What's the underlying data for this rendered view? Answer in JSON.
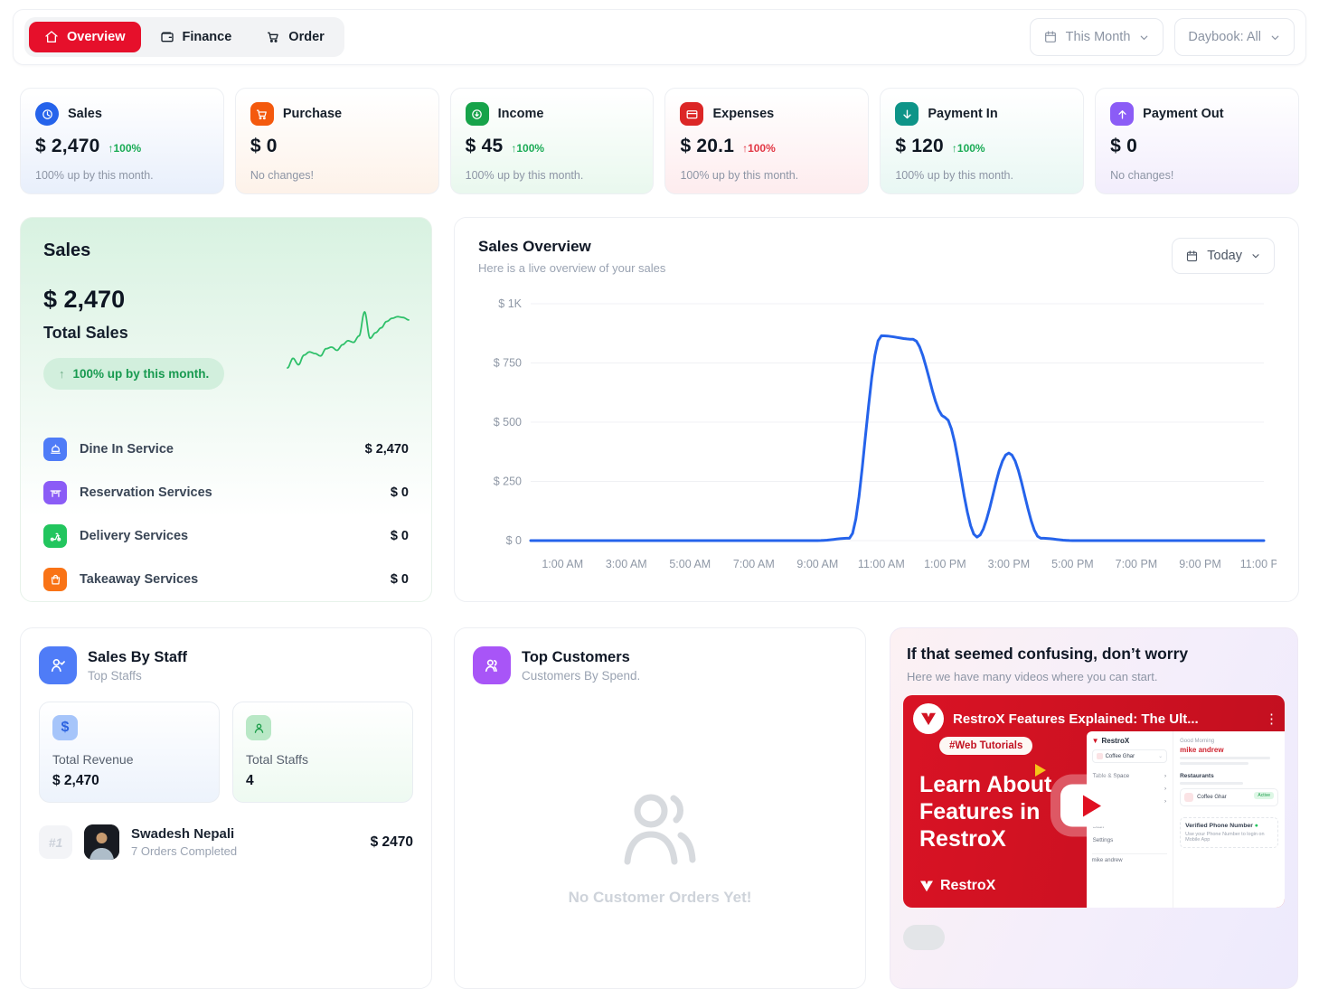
{
  "brand": {
    "accent_red": "#e6102b",
    "chart_blue": "#2563eb",
    "spark_green": "#2fc06a"
  },
  "topbar": {
    "tabs": [
      {
        "label": "Overview"
      },
      {
        "label": "Finance"
      },
      {
        "label": "Order"
      }
    ],
    "period_label": "This Month",
    "daybook_label": "Daybook: All"
  },
  "stat_cards": [
    {
      "title": "Sales",
      "value": "$ 2,470",
      "delta": "100%",
      "note": "100% up by this month.",
      "accent": "#2563eb",
      "tint": "#e8effb",
      "delta_color": "#1aab55"
    },
    {
      "title": "Purchase",
      "value": "$ 0",
      "delta": "",
      "note": "No changes!",
      "accent": "#f4590d",
      "tint": "#fdf2e9",
      "delta_color": ""
    },
    {
      "title": "Income",
      "value": "$ 45",
      "delta": "100%",
      "note": "100% up by this month.",
      "accent": "#16a34a",
      "tint": "#e9f8ee",
      "delta_color": "#1aab55"
    },
    {
      "title": "Expenses",
      "value": "$ 20.1",
      "delta": "100%",
      "note": "100% up by this month.",
      "accent": "#dc2626",
      "tint": "#fdecee",
      "delta_color": "#e23744"
    },
    {
      "title": "Payment In",
      "value": "$ 120",
      "delta": "100%",
      "note": "100% up by this month.",
      "accent": "#0d9488",
      "tint": "#e8f7f3",
      "delta_color": "#1aab55"
    },
    {
      "title": "Payment Out",
      "value": "$ 0",
      "delta": "",
      "note": "No changes!",
      "accent": "#8b5cf6",
      "tint": "#f2edfc",
      "delta_color": ""
    }
  ],
  "sales_summary": {
    "title": "Sales",
    "value": "$ 2,470",
    "label": "Total Sales",
    "badge": "100% up by this month.",
    "sparkline": [
      18,
      30,
      22,
      34,
      38,
      36,
      33,
      42,
      44,
      40,
      47,
      52,
      50,
      58,
      88,
      55,
      62,
      68,
      76,
      80,
      82,
      81,
      78
    ],
    "services": [
      {
        "name": "Dine In Service",
        "amount": "$ 2,470",
        "accent": "#4f7cf7"
      },
      {
        "name": "Reservation Services",
        "amount": "$ 0",
        "accent": "#8b5cf6"
      },
      {
        "name": "Delivery Services",
        "amount": "$ 0",
        "accent": "#22c55e"
      },
      {
        "name": "Takeaway Services",
        "amount": "$ 0",
        "accent": "#f97316"
      }
    ]
  },
  "sales_overview": {
    "title": "Sales Overview",
    "subtitle": "Here is a live overview of your sales",
    "period_label": "Today"
  },
  "chart_data": {
    "type": "line",
    "title": "Sales Overview",
    "x": [
      "12 AM",
      "1 AM",
      "2 AM",
      "3 AM",
      "4 AM",
      "5 AM",
      "6 AM",
      "7 AM",
      "8 AM",
      "9 AM",
      "10 AM",
      "11 AM",
      "12 PM",
      "1 PM",
      "2 PM",
      "3 PM",
      "4 PM",
      "5 PM",
      "6 PM",
      "7 PM",
      "8 PM",
      "9 PM",
      "10 PM",
      "11 PM"
    ],
    "values": [
      0,
      0,
      0,
      0,
      0,
      0,
      0,
      0,
      0,
      0,
      10,
      865,
      850,
      520,
      15,
      370,
      10,
      0,
      0,
      0,
      0,
      0,
      0,
      0
    ],
    "x_ticks": [
      "1:00 AM",
      "3:00 AM",
      "5:00 AM",
      "7:00 AM",
      "9:00 AM",
      "11:00 AM",
      "1:00 PM",
      "3:00 PM",
      "5:00 PM",
      "7:00 PM",
      "9:00 PM",
      "11:00 PM"
    ],
    "y_ticks": [
      "$ 0",
      "$ 250",
      "$ 500",
      "$ 750",
      "$ 1K"
    ],
    "y_tick_values": [
      0,
      250,
      500,
      750,
      1000
    ],
    "ylim": [
      0,
      1000
    ],
    "xlabel": "",
    "ylabel": "",
    "grid": true,
    "legend": false,
    "line_color": "#2563eb"
  },
  "sales_by_staff": {
    "title": "Sales By Staff",
    "subtitle": "Top Staffs",
    "accent": "#4f7cf7",
    "total_revenue_label": "Total Revenue",
    "total_revenue": "$ 2,470",
    "total_staffs_label": "Total Staffs",
    "total_staffs": "4",
    "staff": [
      {
        "rank": "#1",
        "name": "Swadesh Nepali",
        "orders": "7 Orders Completed",
        "amount": "$ 2470"
      }
    ]
  },
  "top_customers": {
    "title": "Top Customers",
    "subtitle": "Customers By Spend.",
    "accent": "#a855f7",
    "empty_text": "No Customer Orders Yet!"
  },
  "help_card": {
    "title": "If that seemed confusing, don’t worry",
    "subtitle": "Here we have many videos where you can start.",
    "video": {
      "title": "RestroX Features Explained: The Ult...",
      "tag": "#Web Tutorials",
      "caption_line1": "Learn About",
      "caption_line2": "Features in",
      "caption_line3": "RestroX",
      "brand": "RestroX",
      "app": {
        "brand": "RestroX",
        "restaurant": "Coffee Ghar",
        "greeting": "Good Morning",
        "user": "mike andrew",
        "section": "Restaurants",
        "active_badge": "Active",
        "menu": [
          "Table & Space",
          "Finance",
          "Inventory",
          "Customer",
          "Staff",
          "Settings"
        ],
        "footer_user": "mike andrew",
        "verified": "Verified Phone Number",
        "verified_sub": "Use your Phone Number to login on Mobile App"
      }
    }
  }
}
